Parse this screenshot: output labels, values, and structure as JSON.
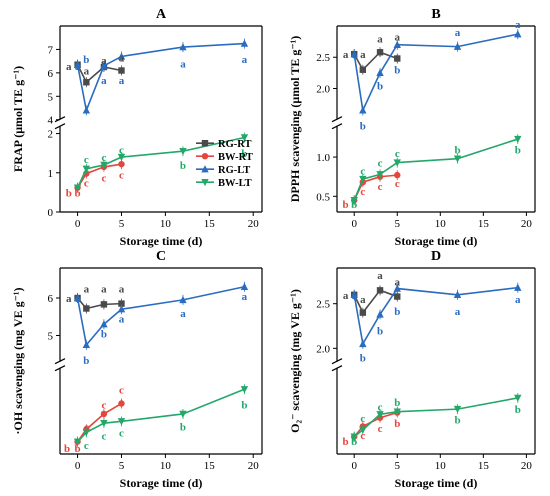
{
  "x_axis_label": "Storage time (d)",
  "legend": [
    {
      "name": "RG-RT",
      "color": "#4a4a4a",
      "marker": "square"
    },
    {
      "name": "BW-RT",
      "color": "#e5453c",
      "marker": "circle"
    },
    {
      "name": "RG-LT",
      "color": "#2a6cc0",
      "marker": "triangle-up"
    },
    {
      "name": "BW-LT",
      "color": "#23a86a",
      "marker": "triangle-down"
    }
  ],
  "chart_data": [
    {
      "type": "line",
      "title": "A",
      "ylabel": "FRAP (μmol TE g⁻¹)",
      "x_ticks": [
        0,
        5,
        10,
        15,
        20
      ],
      "xlim": [
        -2,
        21
      ],
      "y_upper": {
        "range": [
          4,
          8
        ],
        "ticks": [
          4,
          5,
          6,
          7
        ]
      },
      "y_lower": {
        "range": [
          0,
          2.2
        ],
        "ticks": [
          0,
          1,
          2
        ]
      },
      "series": [
        {
          "name": "RG-RT",
          "x": [
            0,
            1,
            3,
            5
          ],
          "values": [
            6.35,
            5.6,
            6.25,
            6.1
          ]
        },
        {
          "name": "BW-RT",
          "x": [
            0,
            1,
            3,
            5
          ],
          "values": [
            0.62,
            0.98,
            1.15,
            1.22
          ]
        },
        {
          "name": "RG-LT",
          "x": [
            0,
            1,
            3,
            5,
            12,
            19
          ],
          "values": [
            6.35,
            4.4,
            6.3,
            6.7,
            7.1,
            7.25
          ]
        },
        {
          "name": "BW-LT",
          "x": [
            0,
            1,
            3,
            5,
            12,
            19
          ],
          "values": [
            0.62,
            1.1,
            1.2,
            1.4,
            1.55,
            1.9
          ]
        }
      ],
      "sig_labels": [
        {
          "text": "a",
          "x": -1,
          "y": 6.3,
          "series": "RG-RT"
        },
        {
          "text": "a",
          "x": 0,
          "y": 6.3,
          "series": "RG-LT"
        },
        {
          "text": "a",
          "x": 1,
          "y": 6.1,
          "series": "RG-RT"
        },
        {
          "text": "a",
          "x": 3,
          "y": 6.55,
          "series": "RG-RT"
        },
        {
          "text": "a",
          "x": 5,
          "y": 6.65,
          "series": "RG-RT"
        },
        {
          "text": "a",
          "x": 3,
          "y": 5.7,
          "series": "RG-LT"
        },
        {
          "text": "a",
          "x": 5,
          "y": 5.7,
          "series": "RG-LT"
        },
        {
          "text": "b",
          "x": 1,
          "y": 3.9,
          "series": "RG-LT"
        },
        {
          "text": "a",
          "x": 12,
          "y": 6.4,
          "series": "RG-LT"
        },
        {
          "text": "a",
          "x": 19,
          "y": 6.6,
          "series": "RG-LT"
        },
        {
          "text": "b",
          "x": -1,
          "y": 0.5,
          "series": "BW-RT"
        },
        {
          "text": "b",
          "x": 0,
          "y": 0.5,
          "series": "BW-RT"
        },
        {
          "text": "c",
          "x": 1,
          "y": 1.35,
          "series": "BW-LT"
        },
        {
          "text": "c",
          "x": 3,
          "y": 1.4,
          "series": "BW-LT"
        },
        {
          "text": "c",
          "x": 5,
          "y": 1.6,
          "series": "BW-LT"
        },
        {
          "text": "c",
          "x": 1,
          "y": 0.75,
          "series": "BW-RT"
        },
        {
          "text": "c",
          "x": 3,
          "y": 0.88,
          "series": "BW-RT"
        },
        {
          "text": "c",
          "x": 5,
          "y": 0.95,
          "series": "BW-RT"
        },
        {
          "text": "b",
          "x": 12,
          "y": 1.2,
          "series": "BW-LT"
        },
        {
          "text": "b",
          "x": 19,
          "y": 1.5,
          "series": "BW-LT"
        }
      ]
    },
    {
      "type": "line",
      "title": "B",
      "ylabel": "DPPH scavenging (μmol TE g⁻¹)",
      "x_ticks": [
        0,
        5,
        10,
        15,
        20
      ],
      "xlim": [
        -2,
        21
      ],
      "y_upper": {
        "range": [
          1.5,
          3.0
        ],
        "ticks": [
          2.0,
          2.5
        ]
      },
      "y_lower": {
        "range": [
          0.3,
          1.4
        ],
        "ticks": [
          0.5,
          1.0
        ]
      },
      "series": [
        {
          "name": "RG-RT",
          "x": [
            0,
            1,
            3,
            5
          ],
          "values": [
            2.55,
            2.3,
            2.58,
            2.48
          ]
        },
        {
          "name": "BW-RT",
          "x": [
            0,
            1,
            3,
            5
          ],
          "values": [
            0.45,
            0.68,
            0.75,
            0.77
          ]
        },
        {
          "name": "RG-LT",
          "x": [
            0,
            1,
            3,
            5,
            12,
            19
          ],
          "values": [
            2.55,
            1.65,
            2.25,
            2.7,
            2.67,
            2.87
          ]
        },
        {
          "name": "BW-LT",
          "x": [
            0,
            1,
            3,
            5,
            12,
            19
          ],
          "values": [
            0.45,
            0.72,
            0.78,
            0.93,
            0.98,
            1.23
          ]
        }
      ],
      "sig_labels": [
        {
          "text": "a",
          "x": -1,
          "y": 2.55,
          "series": "RG-RT"
        },
        {
          "text": "a",
          "x": 0,
          "y": 2.55,
          "series": "RG-LT"
        },
        {
          "text": "a",
          "x": 1,
          "y": 2.55,
          "series": "RG-RT"
        },
        {
          "text": "a",
          "x": 3,
          "y": 2.8,
          "series": "RG-RT"
        },
        {
          "text": "a",
          "x": 5,
          "y": 2.83,
          "series": "RG-RT"
        },
        {
          "text": "b",
          "x": 1,
          "y": 1.4,
          "series": "RG-LT"
        },
        {
          "text": "b",
          "x": 3,
          "y": 2.05,
          "series": "RG-LT"
        },
        {
          "text": "b",
          "x": 5,
          "y": 2.3,
          "series": "RG-LT"
        },
        {
          "text": "a",
          "x": 12,
          "y": 2.9,
          "series": "RG-LT"
        },
        {
          "text": "a",
          "x": 19,
          "y": 3.03,
          "series": "RG-LT"
        },
        {
          "text": "b",
          "x": -1,
          "y": 0.4,
          "series": "BW-RT"
        },
        {
          "text": "b",
          "x": 0,
          "y": 0.4,
          "series": "BW-LT"
        },
        {
          "text": "c",
          "x": 1,
          "y": 0.83,
          "series": "BW-LT"
        },
        {
          "text": "c",
          "x": 3,
          "y": 0.93,
          "series": "BW-LT"
        },
        {
          "text": "c",
          "x": 5,
          "y": 1.05,
          "series": "BW-LT"
        },
        {
          "text": "c",
          "x": 1,
          "y": 0.57,
          "series": "BW-RT"
        },
        {
          "text": "c",
          "x": 3,
          "y": 0.63,
          "series": "BW-RT"
        },
        {
          "text": "c",
          "x": 5,
          "y": 0.67,
          "series": "BW-RT"
        },
        {
          "text": "b",
          "x": 12,
          "y": 1.1,
          "series": "BW-LT"
        },
        {
          "text": "b",
          "x": 19,
          "y": 1.1,
          "series": "BW-LT"
        }
      ]
    },
    {
      "type": "line",
      "title": "C",
      "ylabel": "·OH scavenging (mg VE g⁻¹)",
      "x_ticks": [
        0,
        5,
        10,
        15,
        20
      ],
      "xlim": [
        -2,
        21
      ],
      "y_upper": {
        "range": [
          4.3,
          6.8
        ],
        "ticks": [
          5,
          6
        ]
      },
      "y_lower": {
        "range": [
          0.8,
          2.2
        ],
        "ticks": []
      },
      "series": [
        {
          "name": "RG-RT",
          "x": [
            0,
            1,
            3,
            5
          ],
          "values": [
            6.0,
            5.72,
            5.83,
            5.85
          ]
        },
        {
          "name": "BW-RT",
          "x": [
            0,
            1,
            3,
            5
          ],
          "values": [
            1.0,
            1.2,
            1.45,
            1.62
          ]
        },
        {
          "name": "RG-LT",
          "x": [
            0,
            1,
            3,
            5,
            12,
            19
          ],
          "values": [
            6.0,
            4.75,
            5.3,
            5.7,
            5.95,
            6.3
          ]
        },
        {
          "name": "BW-LT",
          "x": [
            0,
            1,
            3,
            5,
            12,
            19
          ],
          "values": [
            1.0,
            1.15,
            1.3,
            1.33,
            1.45,
            1.85
          ]
        }
      ],
      "sig_labels": [
        {
          "text": "a",
          "x": -1,
          "y": 6.0,
          "series": "RG-RT"
        },
        {
          "text": "a",
          "x": 0,
          "y": 6.0,
          "series": "RG-LT"
        },
        {
          "text": "a",
          "x": 1,
          "y": 6.25,
          "series": "RG-RT"
        },
        {
          "text": "a",
          "x": 3,
          "y": 6.25,
          "series": "RG-RT"
        },
        {
          "text": "a",
          "x": 5,
          "y": 6.25,
          "series": "RG-RT"
        },
        {
          "text": "b",
          "x": 1,
          "y": 4.35,
          "series": "RG-LT"
        },
        {
          "text": "b",
          "x": 3,
          "y": 5.05,
          "series": "RG-LT"
        },
        {
          "text": "a",
          "x": 5,
          "y": 5.45,
          "series": "RG-LT"
        },
        {
          "text": "a",
          "x": 12,
          "y": 5.6,
          "series": "RG-LT"
        },
        {
          "text": "a",
          "x": 19,
          "y": 6.05,
          "series": "RG-LT"
        },
        {
          "text": "b",
          "x": -1.2,
          "y": 0.9,
          "series": "BW-RT"
        },
        {
          "text": "b",
          "x": 0,
          "y": 0.9,
          "series": "BW-RT"
        },
        {
          "text": "c",
          "x": 1,
          "y": 0.95,
          "series": "BW-LT"
        },
        {
          "text": "c",
          "x": 1,
          "y": 1.25,
          "series": "BW-RT"
        },
        {
          "text": "c",
          "x": 3,
          "y": 1.6,
          "series": "BW-RT"
        },
        {
          "text": "c",
          "x": 5,
          "y": 1.85,
          "series": "BW-RT"
        },
        {
          "text": "c",
          "x": 3,
          "y": 1.1,
          "series": "BW-LT"
        },
        {
          "text": "c",
          "x": 5,
          "y": 1.15,
          "series": "BW-LT"
        },
        {
          "text": "b",
          "x": 12,
          "y": 1.25,
          "series": "BW-LT"
        },
        {
          "text": "b",
          "x": 19,
          "y": 1.6,
          "series": "BW-LT"
        }
      ]
    },
    {
      "type": "line",
      "title": "D",
      "ylabel": "O₂⁻ scavenging (mg VE g⁻¹)",
      "x_ticks": [
        0,
        5,
        10,
        15,
        20
      ],
      "xlim": [
        -2,
        21
      ],
      "y_upper": {
        "range": [
          1.85,
          2.9
        ],
        "ticks": [
          2.0,
          2.5
        ]
      },
      "y_lower": {
        "range": [
          0.4,
          1.4
        ],
        "ticks": []
      },
      "series": [
        {
          "name": "RG-RT",
          "x": [
            0,
            1,
            3,
            5
          ],
          "values": [
            2.6,
            2.4,
            2.65,
            2.58
          ]
        },
        {
          "name": "BW-RT",
          "x": [
            0,
            1,
            3,
            5
          ],
          "values": [
            0.6,
            0.72,
            0.82,
            0.88
          ]
        },
        {
          "name": "RG-LT",
          "x": [
            0,
            1,
            3,
            5,
            12,
            19
          ],
          "values": [
            2.6,
            2.05,
            2.38,
            2.67,
            2.6,
            2.68
          ]
        },
        {
          "name": "BW-LT",
          "x": [
            0,
            1,
            3,
            5,
            12,
            19
          ],
          "values": [
            0.6,
            0.68,
            0.86,
            0.89,
            0.92,
            1.05
          ]
        }
      ],
      "sig_labels": [
        {
          "text": "a",
          "x": -1,
          "y": 2.6,
          "series": "RG-RT"
        },
        {
          "text": "a",
          "x": 0,
          "y": 2.6,
          "series": "RG-LT"
        },
        {
          "text": "a",
          "x": 1,
          "y": 2.55,
          "series": "RG-RT"
        },
        {
          "text": "a",
          "x": 3,
          "y": 2.82,
          "series": "RG-RT"
        },
        {
          "text": "a",
          "x": 5,
          "y": 2.75,
          "series": "RG-RT"
        },
        {
          "text": "b",
          "x": 1,
          "y": 1.9,
          "series": "RG-LT"
        },
        {
          "text": "b",
          "x": 3,
          "y": 2.2,
          "series": "RG-LT"
        },
        {
          "text": "b",
          "x": 5,
          "y": 2.42,
          "series": "RG-LT"
        },
        {
          "text": "a",
          "x": 12,
          "y": 2.42,
          "series": "RG-LT"
        },
        {
          "text": "a",
          "x": 19,
          "y": 2.55,
          "series": "RG-LT"
        },
        {
          "text": "b",
          "x": -1,
          "y": 0.55,
          "series": "BW-RT"
        },
        {
          "text": "b",
          "x": 0,
          "y": 0.55,
          "series": "BW-LT"
        },
        {
          "text": "c",
          "x": 1,
          "y": 0.82,
          "series": "BW-LT"
        },
        {
          "text": "c",
          "x": 3,
          "y": 0.95,
          "series": "BW-LT"
        },
        {
          "text": "b",
          "x": 5,
          "y": 1.0,
          "series": "BW-LT"
        },
        {
          "text": "c",
          "x": 1,
          "y": 0.62,
          "series": "BW-RT"
        },
        {
          "text": "c",
          "x": 3,
          "y": 0.7,
          "series": "BW-RT"
        },
        {
          "text": "b",
          "x": 5,
          "y": 0.76,
          "series": "BW-RT"
        },
        {
          "text": "b",
          "x": 12,
          "y": 0.8,
          "series": "BW-LT"
        },
        {
          "text": "b",
          "x": 19,
          "y": 0.92,
          "series": "BW-LT"
        }
      ]
    }
  ]
}
